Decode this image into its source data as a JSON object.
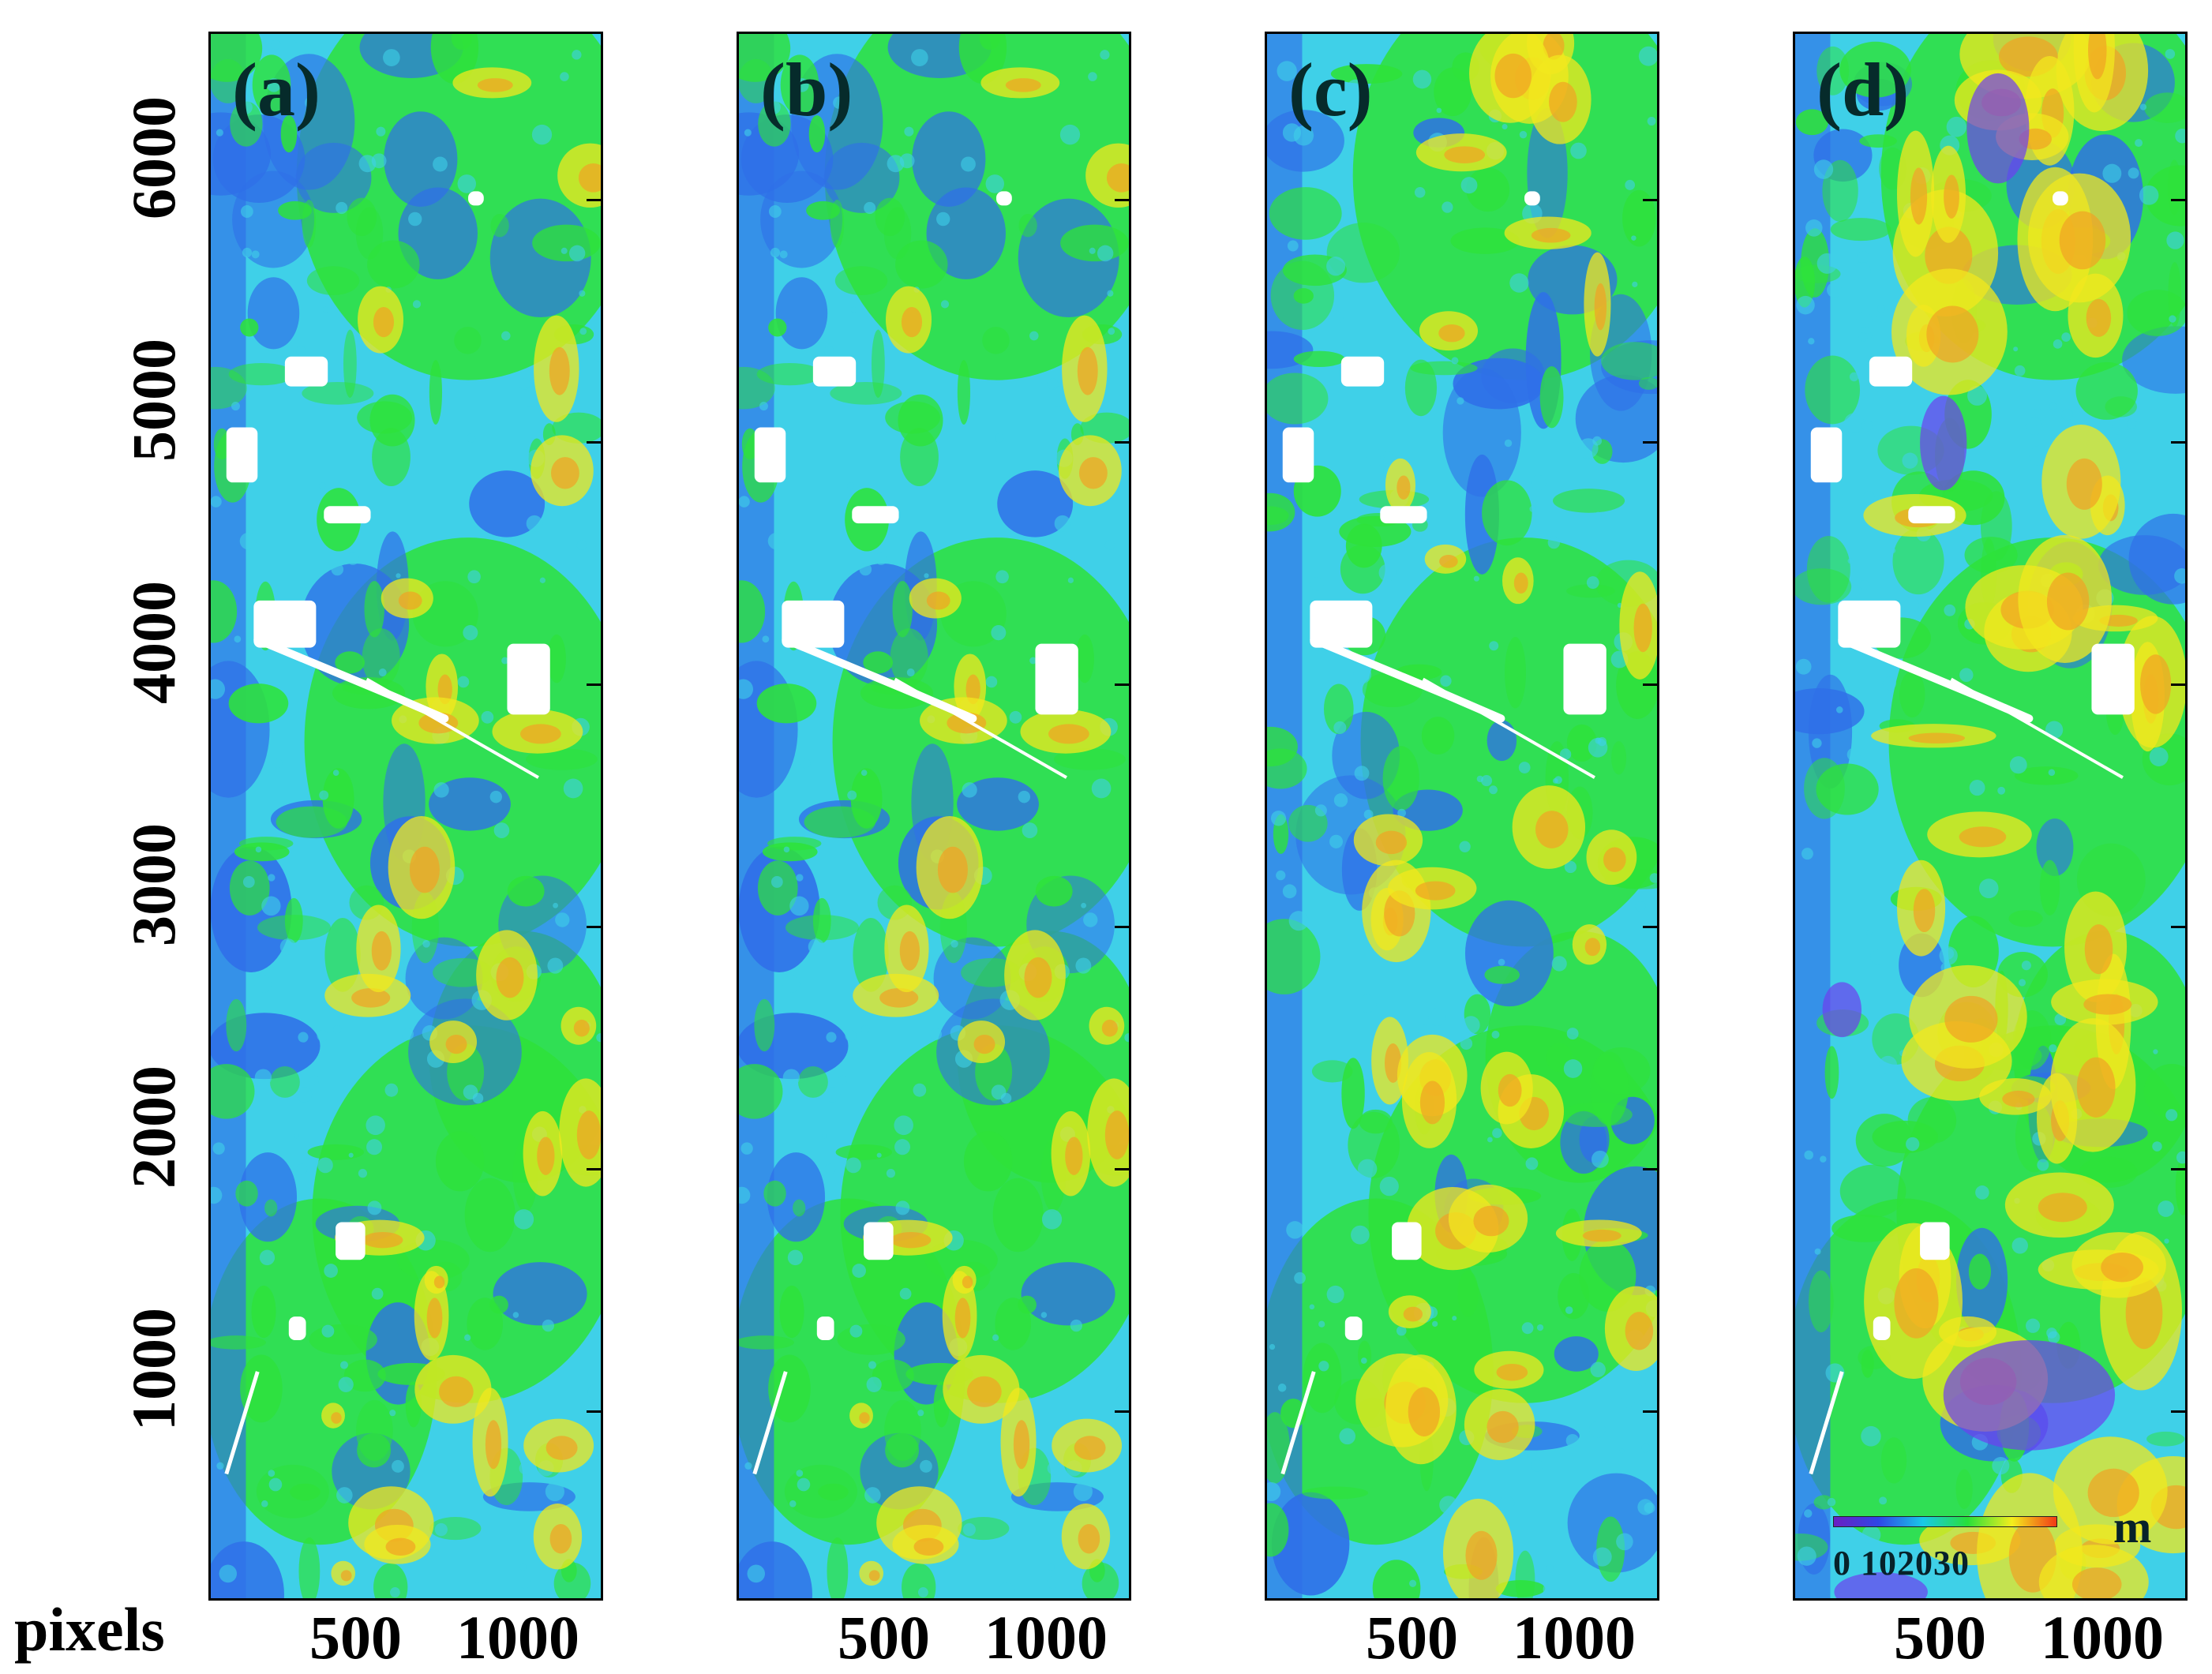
{
  "figure": {
    "y_axis": {
      "unit_label": "pixels",
      "tick_labels": [
        "6000",
        "5000",
        "4000",
        "3000",
        "2000",
        "1000"
      ]
    },
    "x_axis": {
      "tick_labels": [
        "500",
        "1000"
      ]
    },
    "panels": [
      {
        "label": "(a)"
      },
      {
        "label": "(b)"
      },
      {
        "label": "(c)"
      },
      {
        "label": "(d)"
      }
    ],
    "legend": {
      "values": "0 102030",
      "unit": "m",
      "gradient_colors": [
        "#6a1fc2",
        "#2f45e6",
        "#18c9e8",
        "#28e03a",
        "#f3ee1d",
        "#f23a16"
      ]
    }
  },
  "palette": {
    "water_blue": "#2f6fe8",
    "cyan": "#3fd0e8",
    "green": "#2ee23a",
    "yellow": "#f1e81d",
    "orange": "#f1a323",
    "purple": "#6e3ff0",
    "white": "#ffffff"
  }
}
